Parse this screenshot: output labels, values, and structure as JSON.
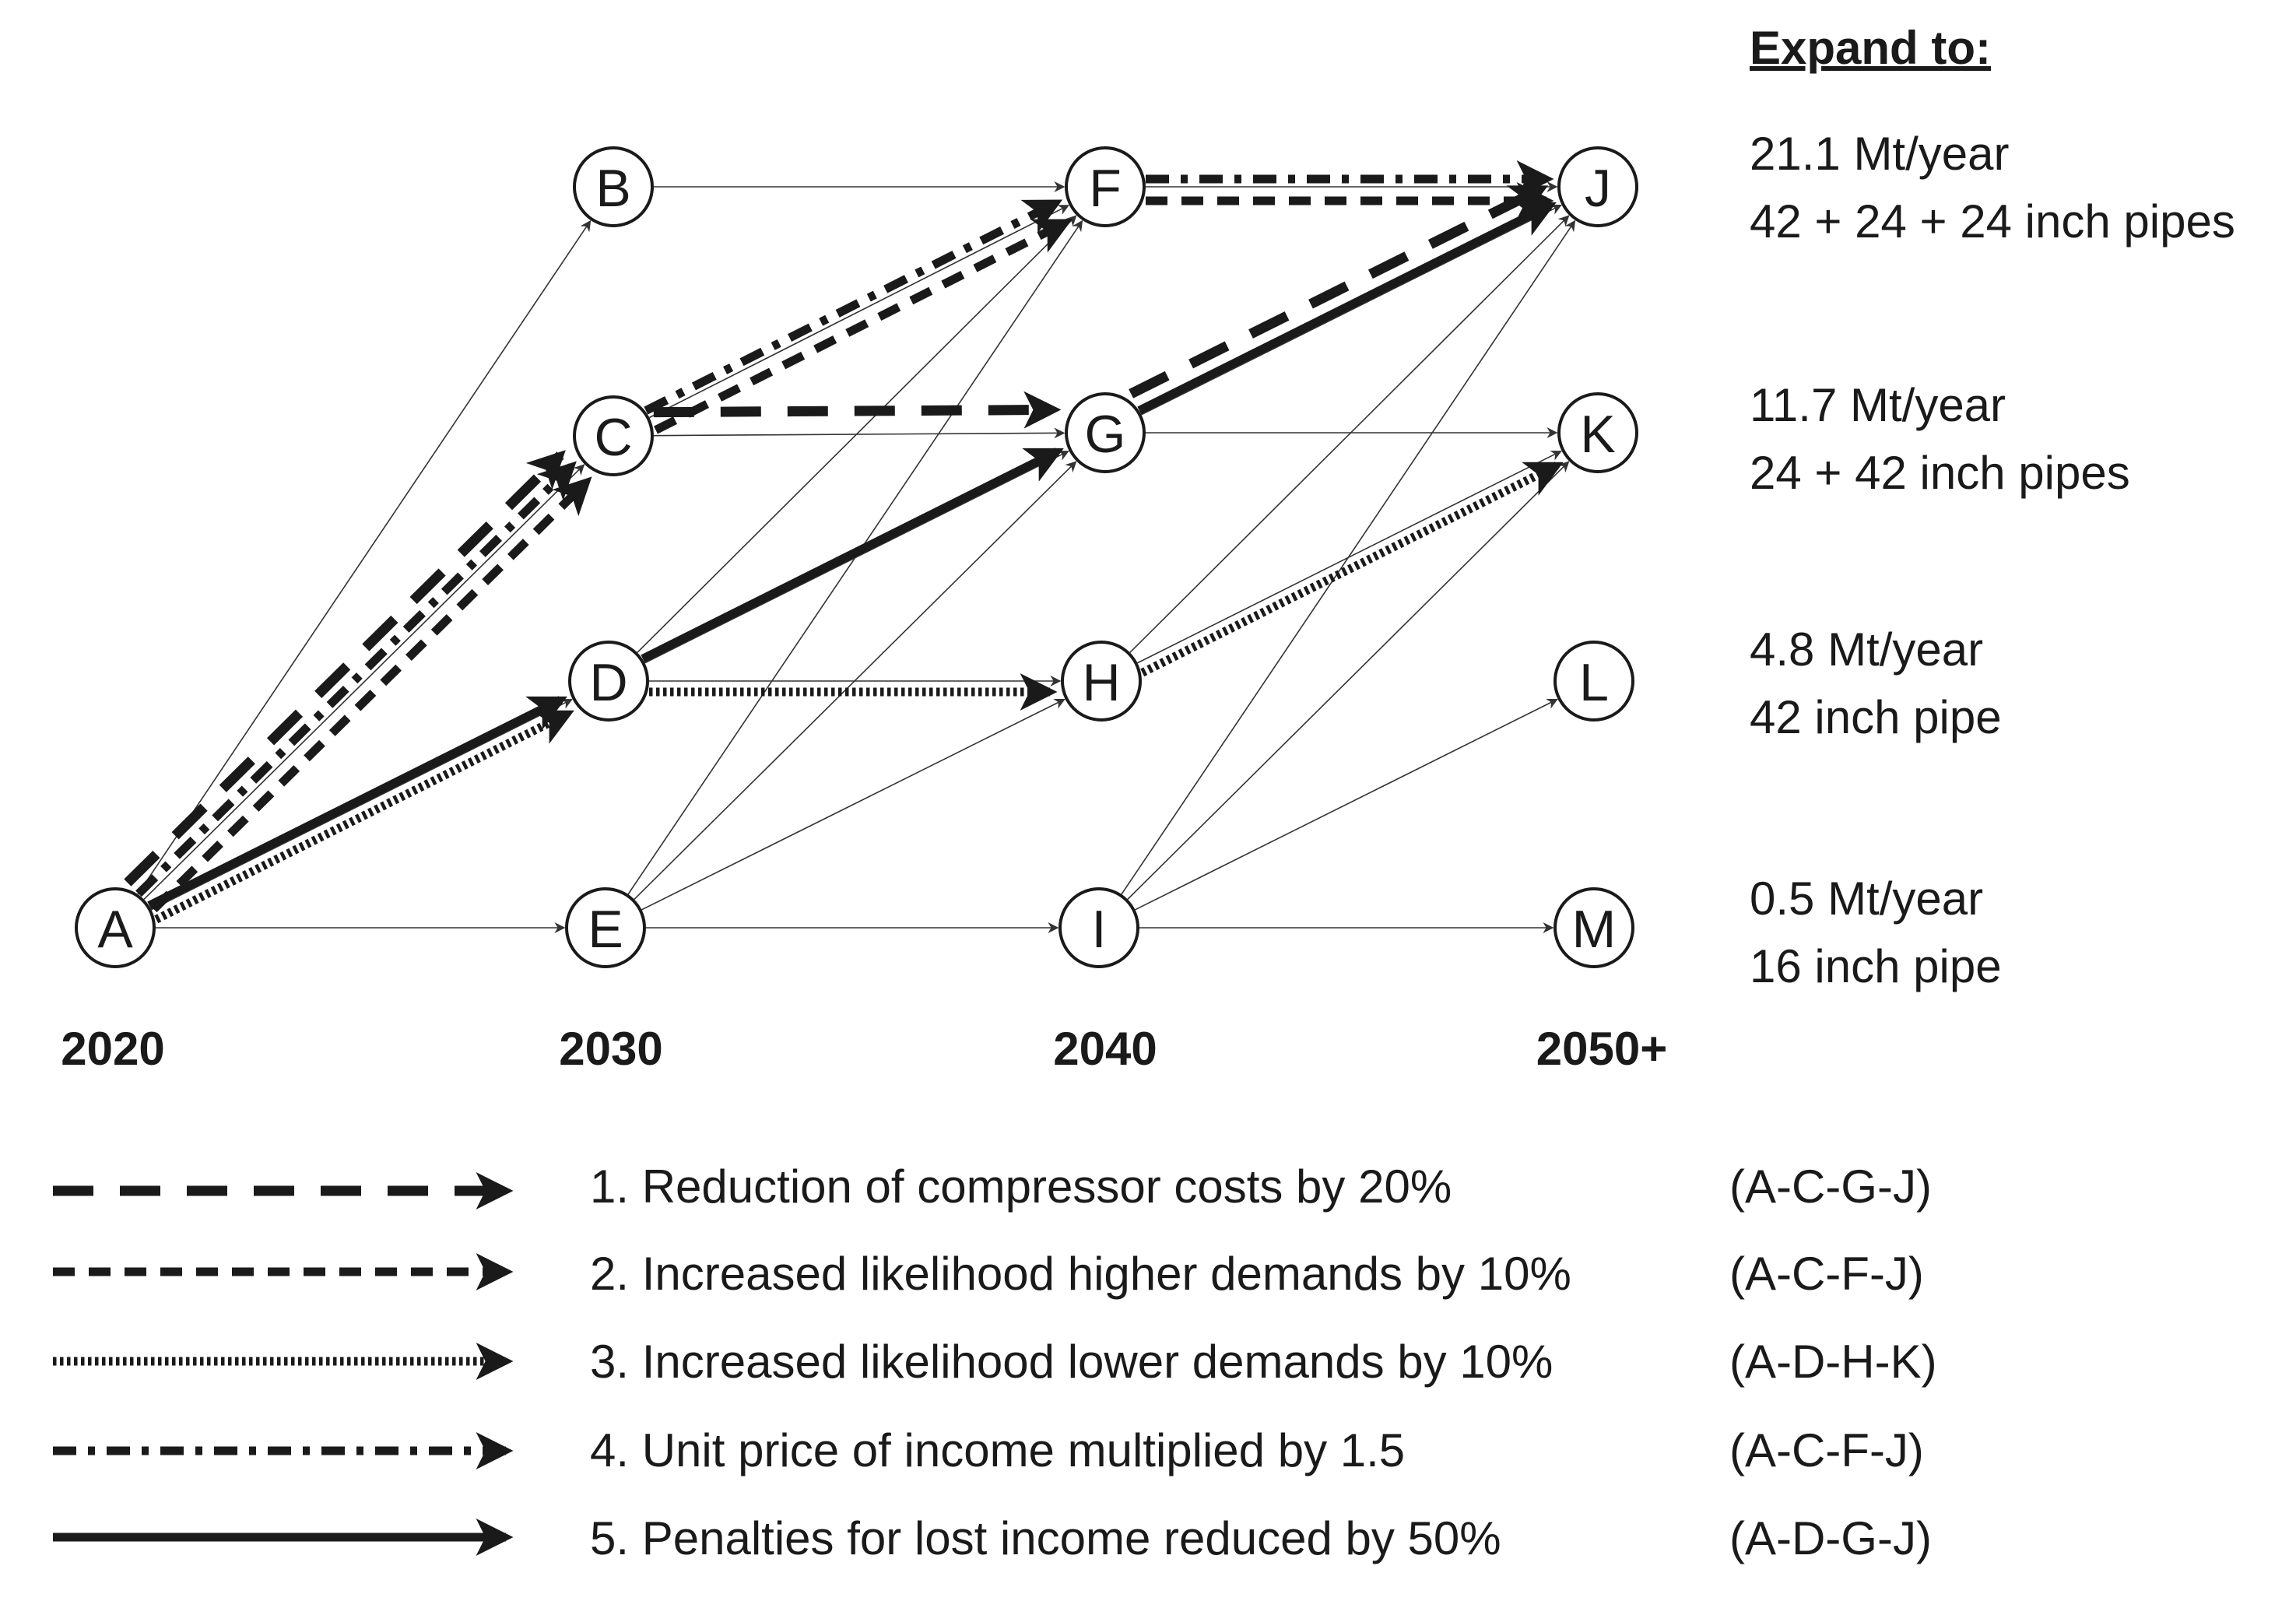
{
  "years": [
    "2020",
    "2030",
    "2040",
    "2050+"
  ],
  "nodes": [
    {
      "id": "A",
      "label": "A"
    },
    {
      "id": "B",
      "label": "B"
    },
    {
      "id": "C",
      "label": "C"
    },
    {
      "id": "D",
      "label": "D"
    },
    {
      "id": "E",
      "label": "E"
    },
    {
      "id": "F",
      "label": "F"
    },
    {
      "id": "G",
      "label": "G"
    },
    {
      "id": "H",
      "label": "H"
    },
    {
      "id": "I",
      "label": "I"
    },
    {
      "id": "J",
      "label": "J"
    },
    {
      "id": "K",
      "label": "K"
    },
    {
      "id": "L",
      "label": "L"
    },
    {
      "id": "M",
      "label": "M"
    }
  ],
  "expand_heading": "Expand to:",
  "capacities": [
    {
      "node": "J",
      "rate": "21.1 Mt/year",
      "pipes": "42 + 24 + 24 inch pipes"
    },
    {
      "node": "K",
      "rate": "11.7 Mt/year",
      "pipes": "24 + 42 inch pipes"
    },
    {
      "node": "L",
      "rate": "4.8 Mt/year",
      "pipes": "42 inch pipe"
    },
    {
      "node": "M",
      "rate": "0.5 Mt/year",
      "pipes": "16 inch pipe"
    }
  ],
  "thin_edges": [
    [
      "A",
      "B"
    ],
    [
      "A",
      "C"
    ],
    [
      "A",
      "D"
    ],
    [
      "A",
      "E"
    ],
    [
      "B",
      "F"
    ],
    [
      "C",
      "F"
    ],
    [
      "C",
      "G"
    ],
    [
      "D",
      "F"
    ],
    [
      "D",
      "G"
    ],
    [
      "D",
      "H"
    ],
    [
      "E",
      "F"
    ],
    [
      "E",
      "G"
    ],
    [
      "E",
      "H"
    ],
    [
      "E",
      "I"
    ],
    [
      "F",
      "J"
    ],
    [
      "G",
      "J"
    ],
    [
      "G",
      "K"
    ],
    [
      "H",
      "J"
    ],
    [
      "H",
      "K"
    ],
    [
      "I",
      "J"
    ],
    [
      "I",
      "K"
    ],
    [
      "I",
      "L"
    ],
    [
      "I",
      "M"
    ]
  ],
  "scenarios": [
    {
      "number": "1",
      "style": "s1",
      "text": "1. Reduction of compressor costs by 20%",
      "path": "(A-C-G-J)",
      "nodes": [
        "A",
        "C",
        "G",
        "J"
      ]
    },
    {
      "number": "2",
      "style": "s2",
      "text": "2. Increased likelihood higher demands by 10%",
      "path": "(A-C-F-J)",
      "nodes": [
        "A",
        "C",
        "F",
        "J"
      ]
    },
    {
      "number": "3",
      "style": "s3",
      "text": "3. Increased likelihood lower demands by 10%",
      "path": "(A-D-H-K)",
      "nodes": [
        "A",
        "D",
        "H",
        "K"
      ]
    },
    {
      "number": "4",
      "style": "s4",
      "text": "4. Unit price of income multiplied by 1.5",
      "path": "(A-C-F-J)",
      "nodes": [
        "A",
        "C",
        "F",
        "J"
      ]
    },
    {
      "number": "5",
      "style": "s5",
      "text": "5. Penalties for lost income reduced by 50%",
      "path": "(A-D-G-J)",
      "nodes": [
        "A",
        "D",
        "G",
        "J"
      ]
    }
  ]
}
